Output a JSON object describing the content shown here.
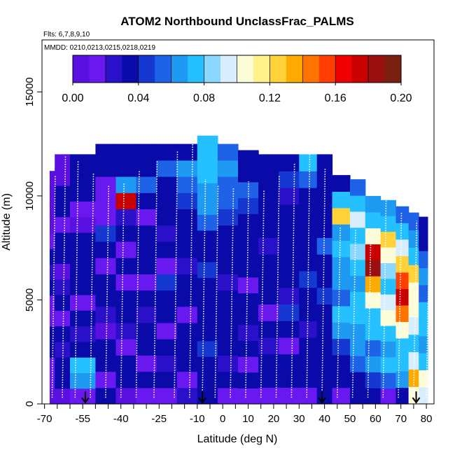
{
  "chart_data": {
    "type": "heatmap",
    "title": "ATOM2 Northbound UnclassFrac_PALMS",
    "flights_label": "Flts: 6,7,8,9,10",
    "dates_label": "MMDD: 0210,0213,0215,0218,0219",
    "xlabel": "Latitude (deg N)",
    "ylabel": "Altitude (m)",
    "xlim": [
      -71,
      83
    ],
    "ylim": [
      0,
      17500
    ],
    "xticks": [
      -70,
      -55,
      -40,
      -25,
      -10,
      0,
      10,
      20,
      30,
      40,
      50,
      60,
      70,
      80
    ],
    "xtick_labels": [
      "-70",
      "-55",
      "-40",
      "-25",
      "-10",
      "0",
      "10",
      "20",
      "30",
      "40",
      "50",
      "60",
      "70",
      "80"
    ],
    "xticks_minor": [
      -65,
      -60,
      -50,
      -45,
      -35,
      -30,
      -20,
      -15,
      -5,
      5,
      15,
      25,
      35,
      45,
      55,
      65,
      75
    ],
    "yticks": [
      0,
      5000,
      10000,
      15000
    ],
    "ytick_labels": [
      "0",
      "5000",
      "10000",
      "15000"
    ],
    "colorbar": {
      "range": [
        0,
        0.2
      ],
      "ticks": [
        0,
        0.04,
        0.08,
        0.12,
        0.16,
        0.2
      ],
      "tick_labels": [
        "0.00",
        "0.04",
        "0.08",
        "0.12",
        "0.16",
        "0.20"
      ],
      "colors": [
        "#5a10e0",
        "#6a18f0",
        "#2a10c8",
        "#0a0aa8",
        "#1438d0",
        "#1e62e8",
        "#1e9af2",
        "#24c0ff",
        "#8ad8ff",
        "#d8eeff",
        "#fcfcd8",
        "#fff28a",
        "#ffd23a",
        "#ffaa00",
        "#ff7400",
        "#ff3e00",
        "#ee0000",
        "#c80000",
        "#9a1010",
        "#7a2010"
      ]
    },
    "profile_lats": [
      -67,
      -63,
      -58,
      -52,
      -46,
      -40,
      -34,
      -27,
      -19,
      -13,
      -8,
      -3,
      3,
      9,
      15,
      21,
      27,
      33,
      39,
      45,
      51,
      57,
      63,
      69,
      75,
      80
    ],
    "profile_tops": [
      11000,
      11900,
      11700,
      11100,
      10500,
      10600,
      11200,
      11700,
      12200,
      12700,
      10800,
      10500,
      10400,
      10700,
      10300,
      11000,
      11600,
      12000,
      11300,
      8500,
      8400,
      8200,
      9800,
      9200,
      8800,
      8500
    ],
    "cells": [
      {
        "lon": -68,
        "lat": -66,
        "ylo": 0,
        "yhi": 11200,
        "values": [
          0.01,
          0.02,
          0.015,
          0.035,
          0.03,
          0.02,
          0.015,
          0.03,
          0.025,
          0.035,
          0.02,
          0.01,
          0.01,
          0.005,
          0.01
        ]
      },
      {
        "lon": -66,
        "lat": -60,
        "ylo": 0,
        "yhi": 12000,
        "values": [
          0.01,
          0.03,
          0.03,
          0.025,
          0.035,
          0.02,
          0.03,
          0.025,
          0.01,
          0.035,
          0.035,
          0.02,
          0.03,
          0.04,
          0.005,
          0.01
        ]
      },
      {
        "lon": -60,
        "lat": -50,
        "ylo": 0,
        "yhi": 12000,
        "values": [
          0.02,
          0.06,
          0.08,
          0.04,
          0.025,
          0.03,
          0.02,
          0.035,
          0.03,
          0.035,
          0.04,
          0.01,
          0.02,
          0.04,
          0.03,
          0.04
        ]
      },
      {
        "lon": -50,
        "lat": -42,
        "ylo": 0,
        "yhi": 12500,
        "values": [
          0.035,
          0.02,
          0.04,
          0.03,
          0.01,
          0.025,
          0.035,
          0.03,
          0.02,
          0.04,
          0.045,
          0.015,
          0.02,
          0.015,
          0.035,
          0.04
        ]
      },
      {
        "lon": -42,
        "lat": -34,
        "ylo": 0,
        "yhi": 12500,
        "values": [
          0.01,
          0.03,
          0.035,
          0.02,
          0.025,
          0.04,
          0.03,
          0.02,
          0.035,
          0.015,
          0.03,
          0.025,
          0.17,
          0.06,
          0.035,
          0.04
        ]
      },
      {
        "lon": -34,
        "lat": -26,
        "ylo": 0,
        "yhi": 12500,
        "values": [
          0.02,
          0.04,
          0.015,
          0.035,
          0.03,
          0.025,
          0.04,
          0.02,
          0.035,
          0.03,
          0.04,
          0.02,
          0.03,
          0.05,
          0.04,
          0.035
        ]
      },
      {
        "lon": -26,
        "lat": -18,
        "ylo": 0,
        "yhi": 12500,
        "values": [
          0.015,
          0.03,
          0.025,
          0.04,
          0.02,
          0.035,
          0.03,
          0.045,
          0.02,
          0.03,
          0.025,
          0.035,
          0.04,
          0.03,
          0.05,
          0.04
        ]
      },
      {
        "lon": -18,
        "lat": -10,
        "ylo": 0,
        "yhi": 12500,
        "values": [
          0.025,
          0.02,
          0.035,
          0.03,
          0.04,
          0.02,
          0.03,
          0.035,
          0.025,
          0.04,
          0.03,
          0.035,
          0.045,
          0.05,
          0.06,
          0.04
        ]
      },
      {
        "lon": -10,
        "lat": -2,
        "ylo": 0,
        "yhi": 12900,
        "values": [
          0.03,
          0.035,
          0.04,
          0.045,
          0.03,
          0.035,
          0.04,
          0.03,
          0.045,
          0.035,
          0.04,
          0.05,
          0.06,
          0.065,
          0.07,
          0.08,
          0.08
        ]
      },
      {
        "lon": -2,
        "lat": 6,
        "ylo": 0,
        "yhi": 12500,
        "values": [
          0.02,
          0.03,
          0.025,
          0.035,
          0.04,
          0.03,
          0.035,
          0.025,
          0.04,
          0.03,
          0.035,
          0.045,
          0.05,
          0.055,
          0.06,
          0.05
        ]
      },
      {
        "lon": 6,
        "lat": 14,
        "ylo": 0,
        "yhi": 12200,
        "values": [
          0.015,
          0.03,
          0.02,
          0.04,
          0.025,
          0.035,
          0.03,
          0.02,
          0.035,
          0.04,
          0.03,
          0.04,
          0.045,
          0.05,
          0.04,
          0.035
        ]
      },
      {
        "lon": 14,
        "lat": 22,
        "ylo": 0,
        "yhi": 12000,
        "values": [
          0.02,
          0.035,
          0.03,
          0.025,
          0.04,
          0.02,
          0.035,
          0.03,
          0.04,
          0.025,
          0.03,
          0.035,
          0.04,
          0.035,
          0.03
        ]
      },
      {
        "lon": 22,
        "lat": 30,
        "ylo": 0,
        "yhi": 12000,
        "values": [
          0.015,
          0.04,
          0.035,
          0.02,
          0.03,
          0.045,
          0.025,
          0.035,
          0.03,
          0.04,
          0.035,
          0.03,
          0.025,
          0.045,
          0.04
        ]
      },
      {
        "lon": 30,
        "lat": 37,
        "ylo": 0,
        "yhi": 12000,
        "values": [
          0.02,
          0.03,
          0.04,
          0.035,
          0.025,
          0.04,
          0.03,
          0.045,
          0.035,
          0.03,
          0.04,
          0.035,
          0.04,
          0.055,
          0.08
        ]
      },
      {
        "lon": 37,
        "lat": 43,
        "ylo": 0,
        "yhi": 12000,
        "values": [
          0.03,
          0.035,
          0.04,
          0.03,
          0.035,
          0.04,
          0.045,
          0.035,
          0.04,
          0.05,
          0.04,
          0.035,
          0.03,
          0.04,
          0.035
        ]
      },
      {
        "lon": 43,
        "lat": 50,
        "ylo": 0,
        "yhi": 11000,
        "values": [
          0.02,
          0.035,
          0.04,
          0.045,
          0.06,
          0.07,
          0.055,
          0.06,
          0.065,
          0.07,
          0.065,
          0.12,
          0.08,
          0.04
        ]
      },
      {
        "lon": 50,
        "lat": 56,
        "ylo": 0,
        "yhi": 10800,
        "values": [
          0.03,
          0.04,
          0.05,
          0.06,
          0.065,
          0.08,
          0.07,
          0.065,
          0.075,
          0.085,
          0.07,
          0.09,
          0.07,
          0.05
        ]
      },
      {
        "lon": 56,
        "lat": 62,
        "ylo": 0,
        "yhi": 10000,
        "values": [
          0.03,
          0.045,
          0.06,
          0.055,
          0.07,
          0.08,
          0.11,
          0.13,
          0.18,
          0.17,
          0.1,
          0.08,
          0.06
        ]
      },
      {
        "lon": 62,
        "lat": 68,
        "ylo": 0,
        "yhi": 9800,
        "values": [
          0.02,
          0.05,
          0.07,
          0.06,
          0.08,
          0.1,
          0.09,
          0.07,
          0.085,
          0.1,
          0.12,
          0.08,
          0.06
        ]
      },
      {
        "lon": 68,
        "lat": 73,
        "ylo": 0,
        "yhi": 9500,
        "values": [
          0.03,
          0.06,
          0.08,
          0.07,
          0.1,
          0.14,
          0.17,
          0.16,
          0.12,
          0.09,
          0.07,
          0.05
        ]
      },
      {
        "lon": 73,
        "lat": 77,
        "ylo": 0,
        "yhi": 9200,
        "values": [
          0.11,
          0.13,
          0.09,
          0.07,
          0.09,
          0.11,
          0.1,
          0.12,
          0.08,
          0.06,
          0.05
        ]
      },
      {
        "lon": 77,
        "lat": 80.5,
        "ylo": 0,
        "yhi": 9000,
        "values": [
          0.09,
          0.11,
          0.07,
          0.06,
          0.08,
          0.07,
          0.05,
          0.06,
          0.05,
          0.04,
          0.03
        ]
      }
    ],
    "arrows_lat": [
      -54,
      -8,
      39,
      76
    ]
  }
}
